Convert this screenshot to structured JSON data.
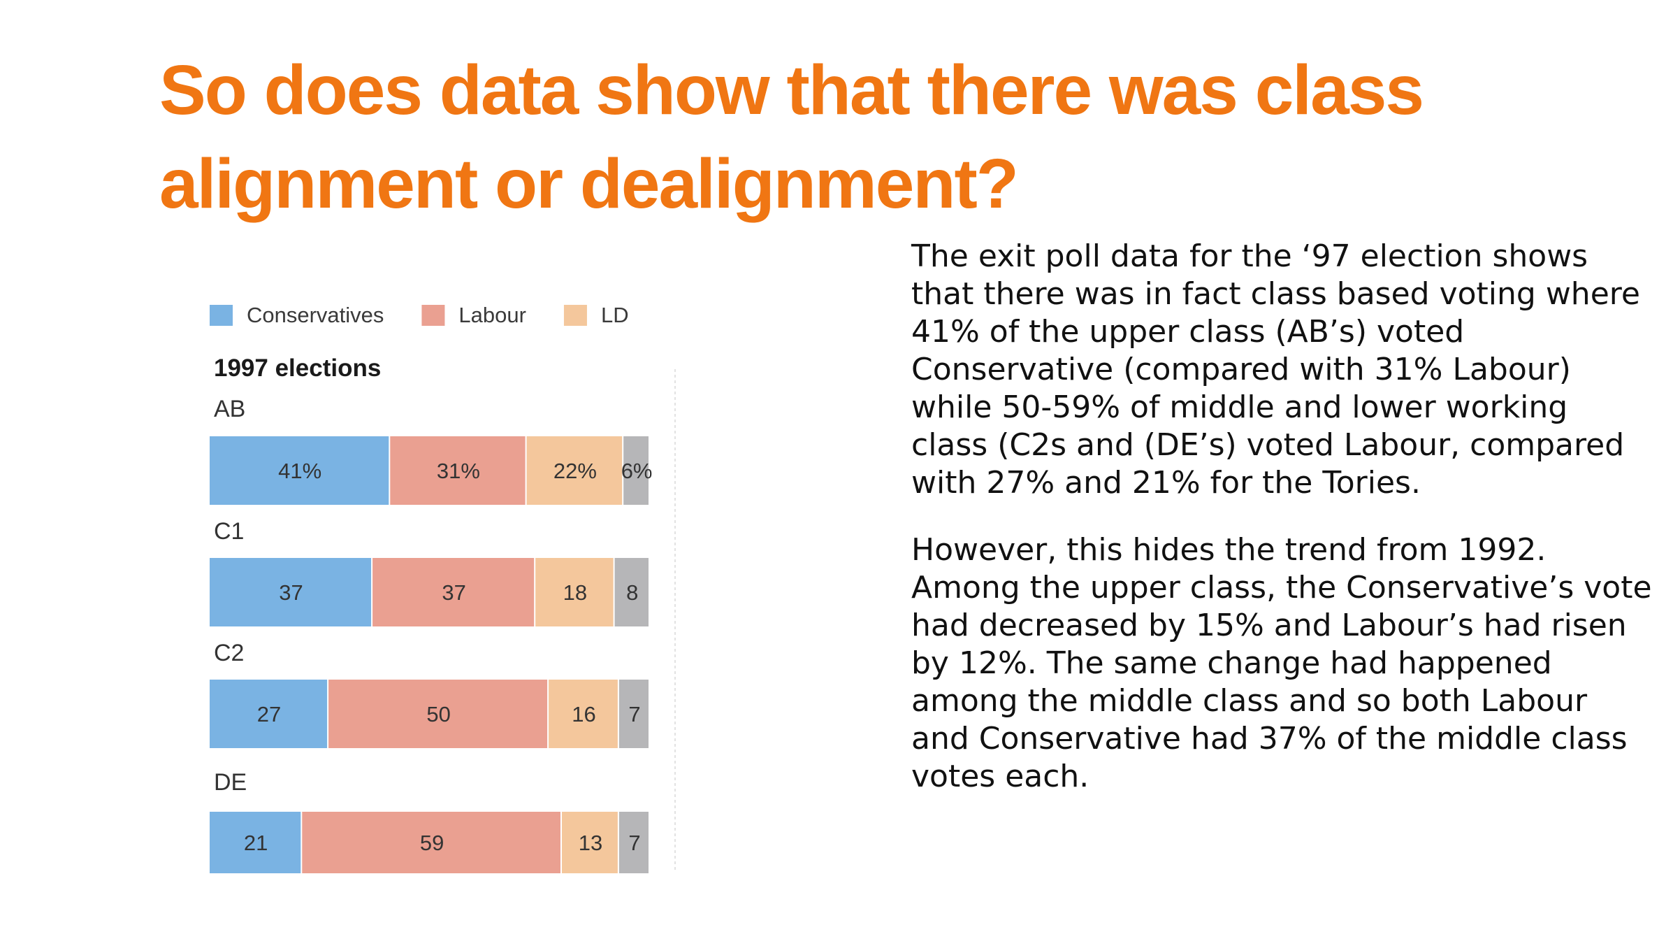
{
  "title": "So does data show that there was class alignment or dealignment?",
  "paragraphs": [
    "The exit poll data for the ‘97 election shows that there was in fact class based voting where 41% of the upper class (AB’s) voted Conservative (compared with 31% Labour) while 50-59% of middle and lower working class  (C2s and (DE’s) voted Labour, compared with 27% and 21% for the Tories.",
    "However, this hides the trend from 1992. Among the upper class, the Conservative’s vote had decreased by 15% and Labour’s had risen by 12%. The same change had happened among the middle class and so both Labour and Conservative had 37% of the middle class votes each."
  ],
  "chart_data": {
    "type": "bar",
    "orientation": "horizontal",
    "stacked": true,
    "title": "1997 elections",
    "categories": [
      "AB",
      "C1",
      "C2",
      "DE"
    ],
    "series": [
      {
        "name": "Conservatives",
        "color": "#7ab3e3",
        "values": [
          41,
          37,
          27,
          21
        ]
      },
      {
        "name": "Labour",
        "color": "#eaa091",
        "values": [
          31,
          37,
          50,
          59
        ]
      },
      {
        "name": "LD",
        "color": "#f4c79c",
        "values": [
          22,
          18,
          16,
          13
        ]
      },
      {
        "name": "",
        "color": "#b6b6b8",
        "values": [
          6,
          8,
          7,
          7
        ]
      }
    ],
    "value_labels": [
      [
        "41%",
        "31%",
        "22%",
        "6%"
      ],
      [
        "37",
        "37",
        "18",
        "8"
      ],
      [
        "27",
        "50",
        "16",
        "7"
      ],
      [
        "21",
        "59",
        "13",
        "7"
      ]
    ],
    "xlim": [
      0,
      100
    ],
    "legend": "top",
    "grid": false
  }
}
